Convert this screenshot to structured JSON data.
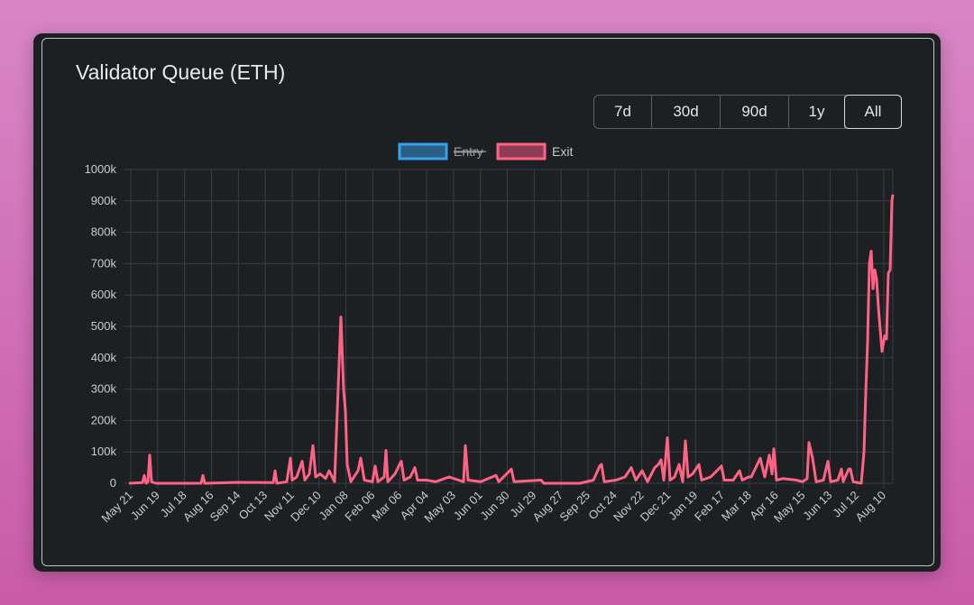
{
  "title": "Validator Queue (ETH)",
  "ranges": [
    {
      "label": "7d",
      "active": false
    },
    {
      "label": "30d",
      "active": false
    },
    {
      "label": "90d",
      "active": false
    },
    {
      "label": "1y",
      "active": false
    },
    {
      "label": "All",
      "active": true
    }
  ],
  "chart_data": {
    "type": "line",
    "title": "Validator Queue (ETH)",
    "legend": {
      "position": "top",
      "entries": [
        {
          "name": "Entry",
          "color": "#36a2eb",
          "hidden": true
        },
        {
          "name": "Exit",
          "color": "#ff6384",
          "hidden": false
        }
      ]
    },
    "y_ticks": [
      "0",
      "100k",
      "200k",
      "300k",
      "400k",
      "500k",
      "600k",
      "700k",
      "800k",
      "900k",
      "1000k"
    ],
    "ylim": [
      0,
      1000000
    ],
    "xlim_days": [
      0,
      847
    ],
    "x_ticks": [
      "May 21",
      "Jun 19",
      "Jul 18",
      "Aug 16",
      "Sep 14",
      "Oct 13",
      "Nov 11",
      "Dec 10",
      "Jan 08",
      "Feb 06",
      "Mar 06",
      "Apr 04",
      "May 03",
      "Jun 01",
      "Jun 30",
      "Jul 29",
      "Aug 27",
      "Sep 25",
      "Oct 24",
      "Nov 22",
      "Dec 21",
      "Jan 19",
      "Feb 17",
      "Mar 18",
      "Apr 16",
      "May 15",
      "Jun 13",
      "Jul 12",
      "Aug 10"
    ],
    "grid": true,
    "series": [
      {
        "name": "Exit",
        "unit": "thousand ETH",
        "points": [
          [
            0,
            0
          ],
          [
            15,
            2
          ],
          [
            17,
            25
          ],
          [
            19,
            0
          ],
          [
            21,
            5
          ],
          [
            23,
            90
          ],
          [
            25,
            5
          ],
          [
            30,
            0
          ],
          [
            60,
            0
          ],
          [
            80,
            0
          ],
          [
            82,
            25
          ],
          [
            84,
            0
          ],
          [
            120,
            3
          ],
          [
            160,
            2
          ],
          [
            162,
            40
          ],
          [
            164,
            0
          ],
          [
            175,
            5
          ],
          [
            179,
            80
          ],
          [
            181,
            10
          ],
          [
            186,
            20
          ],
          [
            192,
            70
          ],
          [
            195,
            10
          ],
          [
            200,
            30
          ],
          [
            204,
            120
          ],
          [
            207,
            20
          ],
          [
            212,
            30
          ],
          [
            218,
            15
          ],
          [
            222,
            40
          ],
          [
            228,
            5
          ],
          [
            235,
            530
          ],
          [
            238,
            300
          ],
          [
            240,
            230
          ],
          [
            242,
            60
          ],
          [
            246,
            5
          ],
          [
            254,
            40
          ],
          [
            257,
            80
          ],
          [
            261,
            10
          ],
          [
            270,
            5
          ],
          [
            273,
            55
          ],
          [
            276,
            5
          ],
          [
            283,
            20
          ],
          [
            285,
            105
          ],
          [
            287,
            5
          ],
          [
            295,
            30
          ],
          [
            300,
            60
          ],
          [
            302,
            70
          ],
          [
            305,
            10
          ],
          [
            312,
            20
          ],
          [
            317,
            50
          ],
          [
            320,
            10
          ],
          [
            330,
            10
          ],
          [
            340,
            5
          ],
          [
            355,
            20
          ],
          [
            371,
            5
          ],
          [
            373,
            120
          ],
          [
            376,
            10
          ],
          [
            390,
            5
          ],
          [
            407,
            25
          ],
          [
            410,
            5
          ],
          [
            424,
            45
          ],
          [
            427,
            5
          ],
          [
            457,
            10
          ],
          [
            460,
            0
          ],
          [
            500,
            0
          ],
          [
            515,
            10
          ],
          [
            522,
            55
          ],
          [
            524,
            60
          ],
          [
            527,
            5
          ],
          [
            540,
            10
          ],
          [
            550,
            20
          ],
          [
            557,
            50
          ],
          [
            562,
            10
          ],
          [
            569,
            40
          ],
          [
            575,
            5
          ],
          [
            583,
            50
          ],
          [
            587,
            60
          ],
          [
            590,
            75
          ],
          [
            593,
            10
          ],
          [
            597,
            145
          ],
          [
            600,
            10
          ],
          [
            605,
            20
          ],
          [
            610,
            60
          ],
          [
            614,
            5
          ],
          [
            617,
            135
          ],
          [
            620,
            20
          ],
          [
            625,
            30
          ],
          [
            632,
            60
          ],
          [
            635,
            10
          ],
          [
            645,
            20
          ],
          [
            657,
            55
          ],
          [
            660,
            10
          ],
          [
            670,
            10
          ],
          [
            677,
            40
          ],
          [
            680,
            10
          ],
          [
            687,
            20
          ],
          [
            690,
            20
          ],
          [
            700,
            80
          ],
          [
            705,
            20
          ],
          [
            710,
            90
          ],
          [
            713,
            30
          ],
          [
            715,
            110
          ],
          [
            718,
            10
          ],
          [
            725,
            15
          ],
          [
            740,
            10
          ],
          [
            747,
            5
          ],
          [
            752,
            15
          ],
          [
            754,
            130
          ],
          [
            758,
            80
          ],
          [
            762,
            5
          ],
          [
            770,
            10
          ],
          [
            775,
            70
          ],
          [
            778,
            5
          ],
          [
            786,
            10
          ],
          [
            790,
            45
          ],
          [
            792,
            5
          ],
          [
            798,
            45
          ],
          [
            800,
            45
          ],
          [
            803,
            5
          ],
          [
            812,
            0
          ],
          [
            815,
            100
          ],
          [
            817,
            290
          ],
          [
            819,
            450
          ],
          [
            821,
            700
          ],
          [
            823,
            740
          ],
          [
            825,
            620
          ],
          [
            827,
            680
          ],
          [
            829,
            650
          ],
          [
            831,
            560
          ],
          [
            835,
            420
          ],
          [
            838,
            470
          ],
          [
            840,
            460
          ],
          [
            842,
            670
          ],
          [
            844,
            680
          ],
          [
            846,
            900
          ],
          [
            847,
            920
          ]
        ]
      }
    ]
  }
}
